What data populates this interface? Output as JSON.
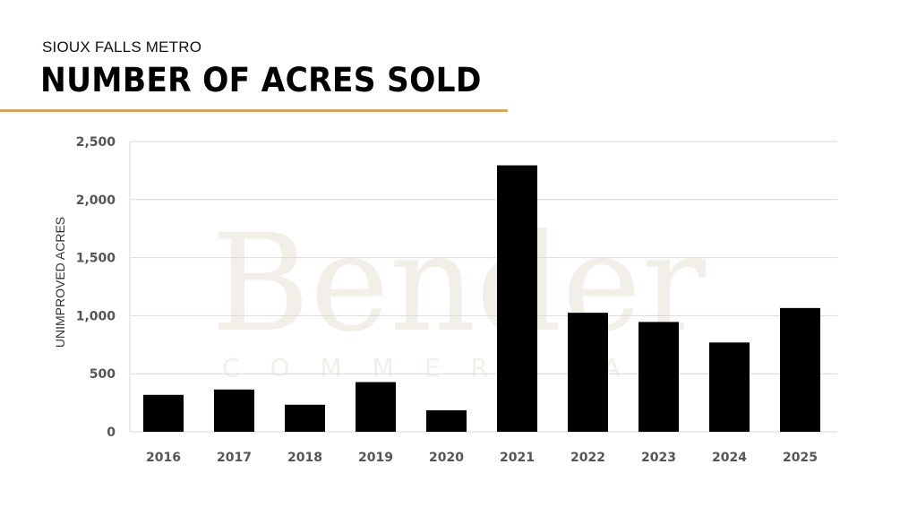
{
  "header": {
    "subtitle": "SIOUX FALLS METRO",
    "title": "NUMBER OF ACRES SOLD",
    "accent_color": "#D4A55E"
  },
  "watermark": {
    "line1": "Bender",
    "line2": "COMMERCIAL"
  },
  "chart_data": {
    "type": "bar",
    "title": "NUMBER OF ACRES SOLD",
    "subtitle": "SIOUX FALLS METRO",
    "xlabel": "",
    "ylabel": "UNIMPROVED ACRES",
    "categories": [
      "2016",
      "2017",
      "2018",
      "2019",
      "2020",
      "2021",
      "2022",
      "2023",
      "2024",
      "2025"
    ],
    "values": [
      318,
      364,
      233,
      428,
      185,
      2295,
      1025,
      946,
      769,
      1066
    ],
    "ylim": [
      0,
      2500
    ],
    "yticks": [
      0,
      500,
      1000,
      1500,
      2000,
      2500
    ],
    "ytick_labels": [
      "0",
      "500",
      "1,000",
      "1,500",
      "2,000",
      "2,500"
    ],
    "grid": true,
    "bar_color": "#000000",
    "grid_color": "#D9D9D9"
  }
}
